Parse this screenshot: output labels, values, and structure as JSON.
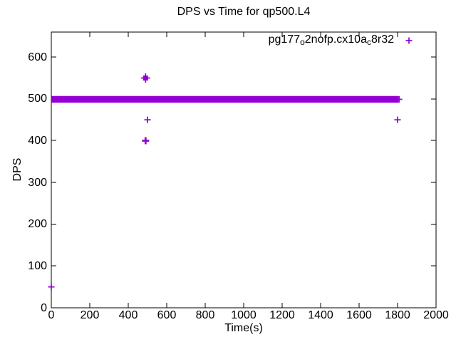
{
  "title": "DPS vs Time for qp500.L4",
  "axes": {
    "xlabel": "Time(s)",
    "ylabel": "DPS"
  },
  "legend": {
    "text": "pg177o2nofp.cx10ac8r32",
    "segments": [
      {
        "text": "pg177",
        "sub": false
      },
      {
        "text": "o",
        "sub": true
      },
      {
        "text": "2nofp.cx10a",
        "sub": false
      },
      {
        "text": "c",
        "sub": true
      },
      {
        "text": "8r32",
        "sub": false
      }
    ],
    "marker": "plus",
    "position": "top-right-inside"
  },
  "colors": {
    "series": "#9400D3",
    "axis": "#000000",
    "background": "#ffffff",
    "text": "#000000"
  },
  "chart_data": {
    "type": "scatter",
    "title": "DPS vs Time for qp500.L4",
    "xlabel": "Time(s)",
    "ylabel": "DPS",
    "xlim": [
      0,
      2000
    ],
    "ylim": [
      0,
      660
    ],
    "xticks": [
      0,
      200,
      400,
      600,
      800,
      1000,
      1200,
      1400,
      1600,
      1800,
      2000
    ],
    "yticks": [
      0,
      100,
      200,
      300,
      400,
      500,
      600
    ],
    "grid": false,
    "legend_position": "top-right-inside",
    "series": [
      {
        "name": "pg177o2nofp.cx10ac8r32",
        "marker": "plus",
        "color": "#9400D3",
        "band": {
          "y": 499,
          "x_start": 0,
          "x_end": 1805,
          "note": "dense overlapping + samples at ~499 DPS from t=0 to t=1805s forming a solid bar"
        },
        "outliers": [
          {
            "x": 0,
            "y": 50
          },
          {
            "x": 490,
            "y": 550,
            "style": "cluster"
          },
          {
            "x": 500,
            "y": 450
          },
          {
            "x": 490,
            "y": 400,
            "style": "bold"
          },
          {
            "x": 1800,
            "y": 450
          },
          {
            "x": 1808,
            "y": 499
          }
        ]
      }
    ]
  }
}
